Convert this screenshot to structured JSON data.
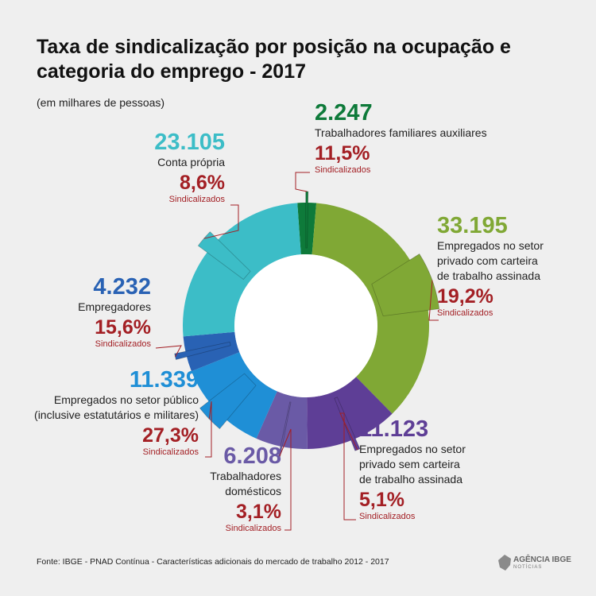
{
  "title": "Taxa de sindicalização por posição na ocupação e categoria do emprego - 2017",
  "subtitle": "(em milhares de pessoas)",
  "footer": "Fonte: IBGE - PNAD Contínua - Características adicionais do mercado de trabalho 2012 - 2017",
  "logo": {
    "text": "AGÊNCIA IBGE",
    "sub": "NOTÍCIAS"
  },
  "sind_label": "Sindicalizados",
  "chart_data": {
    "type": "pie",
    "variant": "donut",
    "title": "Taxa de sindicalização por posição na ocupação e categoria do emprego - 2017",
    "subtitle": "(em milhares de pessoas)",
    "slices": [
      {
        "key": "familiares",
        "label": "Trabalhadores familiares auxiliares",
        "value": 2247,
        "value_label": "2.247",
        "rate": 11.5,
        "rate_label": "11,5%",
        "color": "#0e7a3a"
      },
      {
        "key": "privado_com",
        "label": "Empregados no setor privado com carteira de trabalho assinada",
        "value": 33195,
        "value_label": "33.195",
        "rate": 19.2,
        "rate_label": "19,2%",
        "color": "#80a835"
      },
      {
        "key": "privado_sem",
        "label": "Empregados no setor privado sem carteira de trabalho assinada",
        "value": 11123,
        "value_label": "11.123",
        "rate": 5.1,
        "rate_label": "5,1%",
        "color": "#5e3e96"
      },
      {
        "key": "domesticos",
        "label": "Trabalhadores domésticos",
        "value": 6208,
        "value_label": "6.208",
        "rate": 3.1,
        "rate_label": "3,1%",
        "color": "#6a5aa6"
      },
      {
        "key": "publico",
        "label": "Empregados no setor público (inclusive estatutários e militares)",
        "value": 11339,
        "value_label": "11.339",
        "rate": 27.3,
        "rate_label": "27,3%",
        "color": "#1f8fd6"
      },
      {
        "key": "empregadores",
        "label": "Empregadores",
        "value": 4232,
        "value_label": "4.232",
        "rate": 15.6,
        "rate_label": "15,6%",
        "color": "#2962b4"
      },
      {
        "key": "conta_propria",
        "label": "Conta própria",
        "value": 23105,
        "value_label": "23.105",
        "rate": 8.6,
        "rate_label": "8,6%",
        "color": "#3cbdc7"
      }
    ]
  },
  "labels": {
    "familiares": {
      "value": "2.247",
      "lines": [
        "Trabalhadores familiares auxiliares"
      ],
      "pct": "11,5%"
    },
    "privado_com": {
      "value": "33.195",
      "lines": [
        "Empregados no setor",
        "privado com carteira",
        "de trabalho assinada"
      ],
      "pct": "19,2%"
    },
    "privado_sem": {
      "value": "11.123",
      "lines": [
        "Empregados no setor",
        "privado sem carteira",
        "de trabalho assinada"
      ],
      "pct": "5,1%"
    },
    "domesticos": {
      "value": "6.208",
      "lines": [
        "Trabalhadores",
        "domésticos"
      ],
      "pct": "3,1%"
    },
    "publico": {
      "value": "11.339",
      "lines": [
        "Empregados no setor público",
        "(inclusive estatutários e militares)"
      ],
      "pct": "27,3%"
    },
    "empregadores": {
      "value": "4.232",
      "lines": [
        "Empregadores"
      ],
      "pct": "15,6%"
    },
    "conta_propria": {
      "value": "23.105",
      "lines": [
        "Conta própria"
      ],
      "pct": "8,6%"
    }
  }
}
